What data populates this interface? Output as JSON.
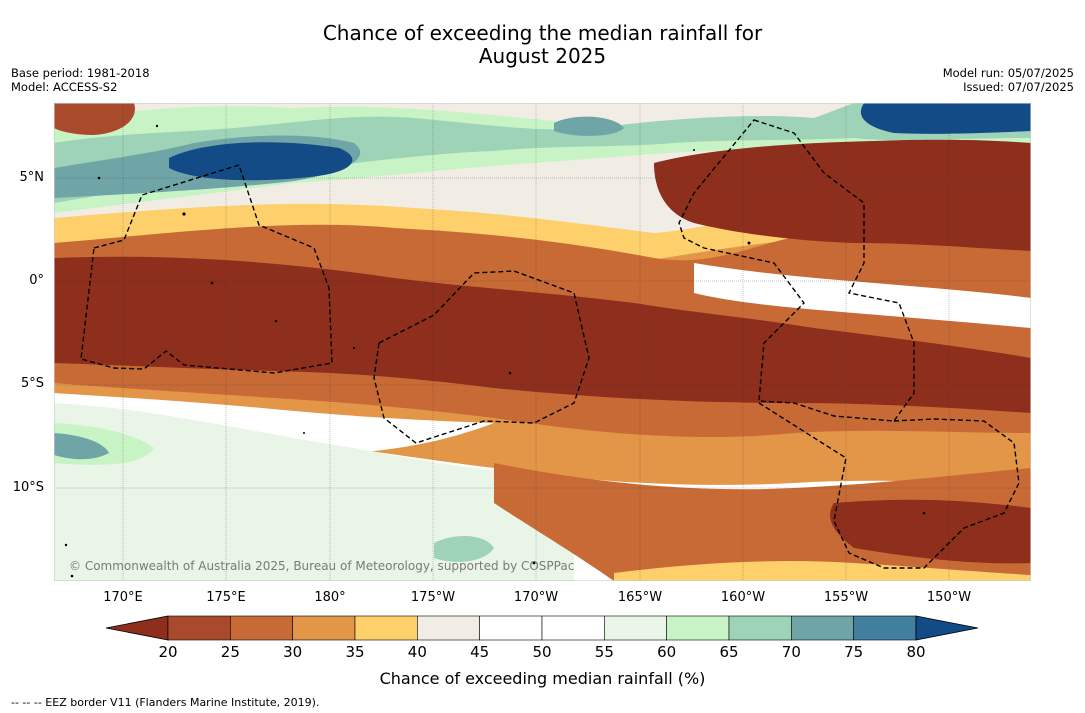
{
  "title_line1": "Chance of exceeding the median rainfall for",
  "title_line2": "August 2025",
  "meta_left": [
    "Base period: 1981-2018",
    "Model: ACCESS-S2"
  ],
  "meta_right": [
    "Model run: 05/07/2025",
    "Issued: 07/07/2025"
  ],
  "lat_labels": [
    "5°N",
    "0°",
    "5°S",
    "10°S"
  ],
  "lon_labels": [
    "170°E",
    "175°E",
    "180°",
    "175°W",
    "170°W",
    "165°W",
    "160°W",
    "155°W",
    "150°W"
  ],
  "colorbar": {
    "ticks": [
      "20",
      "25",
      "30",
      "35",
      "40",
      "45",
      "50",
      "55",
      "60",
      "65",
      "70",
      "75",
      "80"
    ],
    "colors": [
      "#8e2e1c",
      "#aa4a2c",
      "#c76a35",
      "#e39548",
      "#fdd06c",
      "#f1ede5",
      "#ffffff",
      "#ffffff",
      "#e9f5e6",
      "#c8f4c5",
      "#9fd3b7",
      "#6fa5a6",
      "#427f9f",
      "#124b86"
    ],
    "label": "Chance of exceeding median rainfall (%)"
  },
  "copyright": "© Commonwealth of Australia 2025, Bureau of Meteorology, supported by COSPPac",
  "footnote": "-- -- -- EEZ border V11 (Flanders Marine Institute, 2019)."
}
